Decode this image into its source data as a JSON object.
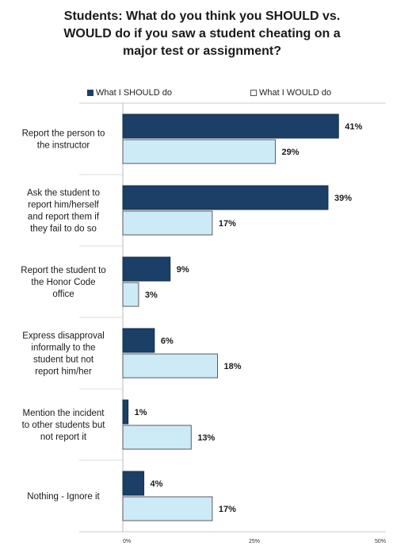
{
  "chart_data": {
    "type": "bar",
    "orientation": "horizontal",
    "title_lines": [
      "Students: What do you think you SHOULD vs.",
      "WOULD do if you saw a student cheating on a",
      "major test or assignment?"
    ],
    "categories": [
      [
        "Report the person to",
        "the instructor"
      ],
      [
        "Ask the student to",
        "report him/herself",
        "and report them if",
        "they fail to do so"
      ],
      [
        "Report the student to",
        "the Honor Code",
        "office"
      ],
      [
        "Express disapproval",
        "informally to the",
        "student but not",
        "report him/her"
      ],
      [
        "Mention the incident",
        "to other students but",
        "not report it"
      ],
      [
        "Nothing - Ignore it"
      ]
    ],
    "series": [
      {
        "name": "What I SHOULD do",
        "values": [
          41,
          39,
          9,
          6,
          1,
          4
        ],
        "color": "#1b3f66"
      },
      {
        "name": "What I WOULD do",
        "values": [
          29,
          17,
          3,
          18,
          13,
          17
        ],
        "color": "#cdeaf7"
      }
    ],
    "value_suffix": "%",
    "xlim": [
      0,
      50
    ],
    "xticks": [
      0,
      25,
      50
    ],
    "xtick_labels": [
      "0%",
      "25%",
      "50%"
    ],
    "legend_position": "top",
    "grid": false
  }
}
